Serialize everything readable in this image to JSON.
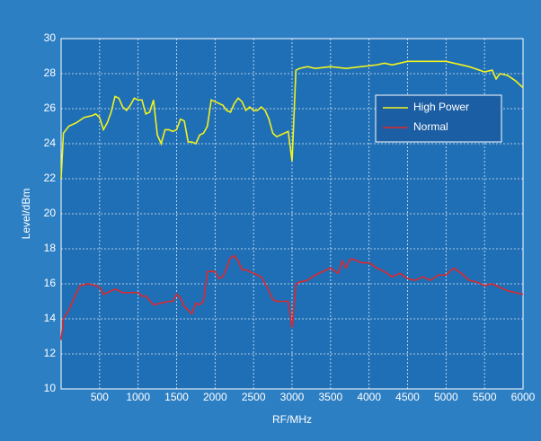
{
  "chart_data": {
    "type": "line",
    "xlabel": "RF/MHz",
    "ylabel": "Level/dBm",
    "xlim": [
      0,
      6000
    ],
    "xticks": [
      500,
      1000,
      1500,
      2000,
      2500,
      3000,
      3500,
      4000,
      4500,
      5000,
      5500,
      6000
    ],
    "ylim": [
      10,
      30
    ],
    "yticks": [
      10,
      12,
      14,
      16,
      18,
      20,
      22,
      24,
      26,
      28,
      30
    ],
    "grid": true,
    "legend": "upper right",
    "series": [
      {
        "name": "High Power",
        "color": "#f2f21e",
        "x": [
          0,
          30,
          100,
          200,
          300,
          400,
          450,
          500,
          550,
          600,
          650,
          700,
          750,
          800,
          850,
          900,
          950,
          1000,
          1050,
          1100,
          1150,
          1200,
          1250,
          1300,
          1350,
          1400,
          1450,
          1500,
          1550,
          1600,
          1650,
          1700,
          1750,
          1800,
          1850,
          1900,
          1950,
          2000,
          2100,
          2150,
          2200,
          2250,
          2300,
          2350,
          2400,
          2450,
          2500,
          2550,
          2600,
          2650,
          2700,
          2750,
          2800,
          2850,
          2900,
          2950,
          3000,
          3050,
          3100,
          3200,
          3300,
          3500,
          3700,
          3900,
          4100,
          4200,
          4300,
          4400,
          4500,
          4700,
          5000,
          5100,
          5300,
          5500,
          5600,
          5650,
          5700,
          5800,
          5900,
          6000
        ],
        "values": [
          22,
          24.6,
          25,
          25.2,
          25.5,
          25.6,
          25.7,
          25.5,
          24.8,
          25.2,
          25.8,
          26.7,
          26.6,
          26.1,
          25.9,
          26.2,
          26.6,
          26.5,
          26.5,
          25.7,
          25.8,
          26.5,
          24.5,
          24,
          24.8,
          24.8,
          24.7,
          24.8,
          25.4,
          25.3,
          24.1,
          24.1,
          24,
          24.5,
          24.6,
          25,
          26.5,
          26.4,
          26.2,
          25.9,
          25.8,
          26.3,
          26.6,
          26.4,
          25.9,
          26.1,
          25.9,
          25.9,
          26.1,
          25.9,
          25.4,
          24.6,
          24.4,
          24.5,
          24.6,
          24.7,
          23,
          28.2,
          28.3,
          28.4,
          28.3,
          28.4,
          28.3,
          28.4,
          28.5,
          28.6,
          28.5,
          28.6,
          28.7,
          28.7,
          28.7,
          28.6,
          28.4,
          28.1,
          28.2,
          27.7,
          28,
          27.9,
          27.6,
          27.2
        ]
      },
      {
        "name": "Normal",
        "color": "#e0262b",
        "x": [
          0,
          30,
          100,
          200,
          250,
          350,
          450,
          500,
          550,
          600,
          700,
          800,
          1000,
          1050,
          1100,
          1200,
          1300,
          1400,
          1450,
          1500,
          1550,
          1600,
          1650,
          1700,
          1750,
          1800,
          1850,
          1900,
          2000,
          2050,
          2100,
          2150,
          2200,
          2250,
          2300,
          2350,
          2400,
          2500,
          2600,
          2700,
          2750,
          2800,
          2900,
          2950,
          3000,
          3050,
          3100,
          3200,
          3300,
          3400,
          3500,
          3600,
          3650,
          3700,
          3750,
          3800,
          3900,
          4000,
          4100,
          4200,
          4300,
          4400,
          4500,
          4600,
          4700,
          4800,
          4900,
          5000,
          5100,
          5200,
          5300,
          5400,
          5500,
          5600,
          5700,
          5800,
          5900,
          6000
        ],
        "values": [
          12.8,
          14,
          14.5,
          15.5,
          15.9,
          16,
          15.9,
          15.8,
          15.4,
          15.5,
          15.7,
          15.5,
          15.5,
          15.3,
          15.3,
          14.8,
          14.9,
          15,
          15,
          15.4,
          15.2,
          14.7,
          14.5,
          14.3,
          14.9,
          14.8,
          15,
          16.7,
          16.7,
          16.3,
          16.4,
          16.9,
          17.5,
          17.6,
          17.3,
          16.8,
          16.8,
          16.6,
          16.4,
          15.6,
          15.1,
          15,
          15,
          15,
          13.5,
          16,
          16.1,
          16.2,
          16.5,
          16.7,
          16.9,
          16.6,
          17.3,
          16.9,
          17.4,
          17.4,
          17.2,
          17.2,
          16.9,
          16.7,
          16.4,
          16.6,
          16.3,
          16.2,
          16.4,
          16.2,
          16.5,
          16.5,
          16.9,
          16.6,
          16.2,
          16.1,
          15.9,
          16,
          15.8,
          15.6,
          15.5,
          15.4
        ]
      }
    ]
  }
}
